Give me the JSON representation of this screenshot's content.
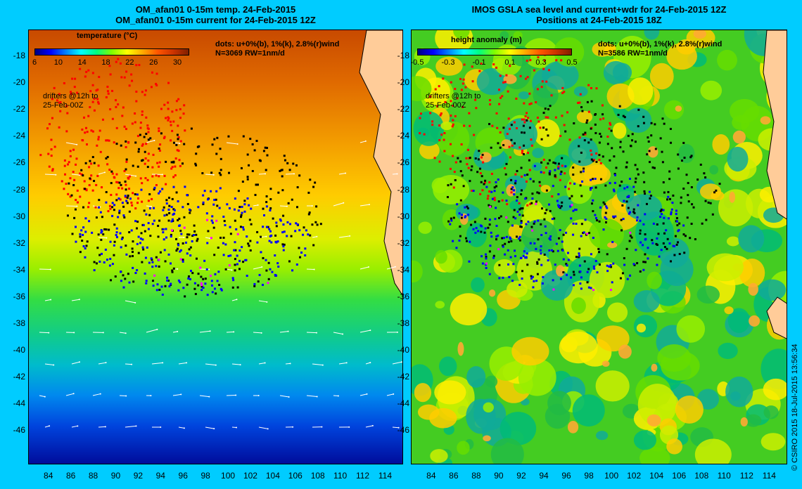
{
  "left": {
    "title_line1": "OM_afan01 0-15m temp. 24-Feb-2015",
    "title_line2": "OM_afan01 0-15m current for 24-Feb-2015 12Z",
    "colorbar_title": "temperature (°C)",
    "colorbar_ticks": [
      "6",
      "10",
      "14",
      "18",
      "22",
      "26",
      "30"
    ],
    "colorbar_range": [
      6,
      32
    ],
    "legend_line1": "dots: u+0%(b), 1%(k), 2.8%(r)wind",
    "legend_line2": "N=3069 RW=1nm/d",
    "drifters_line1": "drifters @12h to",
    "drifters_line2": "25-Feb-00Z"
  },
  "right": {
    "title_line1": "IMOS GSLA sea level and current+wdr for 24-Feb-2015 12Z",
    "title_line2": "Positions at 24-Feb-2015 18Z",
    "colorbar_title": "height anomaly (m)",
    "colorbar_ticks": [
      "-0.5",
      "-0.3",
      "-0.1",
      "0.1",
      "0.3",
      "0.5"
    ],
    "colorbar_range": [
      -0.5,
      0.5
    ],
    "legend_line1": "dots: u+0%(b), 1%(k), 2.8%(r)wind",
    "legend_line2": "N=3586 RW=1nm/d",
    "drifters_line1": "drifters @12h to",
    "drifters_line2": "25-Feb-00Z"
  },
  "axes": {
    "lat_ticks": [
      "-18",
      "-20",
      "-22",
      "-24",
      "-26",
      "-28",
      "-30",
      "-32",
      "-34",
      "-36",
      "-38",
      "-40",
      "-42",
      "-44",
      "-46"
    ],
    "lon_ticks": [
      "84",
      "86",
      "88",
      "90",
      "92",
      "94",
      "96",
      "98",
      "100",
      "102",
      "104",
      "106",
      "108",
      "110",
      "112",
      "114"
    ],
    "lat_range": [
      -16,
      -48.5
    ],
    "lon_range": [
      82.2,
      115.6
    ]
  },
  "credit": "© CSIRO 2015   18-Jul-2015 13:56:34",
  "colors": {
    "background": "#00ccff",
    "land": "#ffcc99",
    "dot_blue": "#0000ff",
    "dot_black": "#000000",
    "dot_red": "#ff0000",
    "dot_magenta": "#ff00ff",
    "vector": "#ffffff"
  }
}
